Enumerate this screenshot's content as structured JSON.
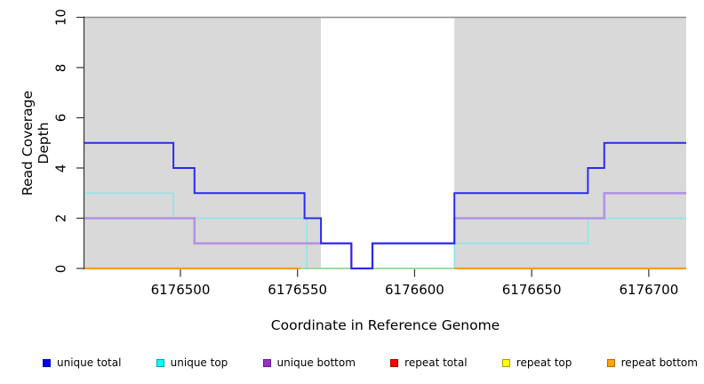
{
  "chart_data": {
    "type": "line",
    "subtype": "step-coverage-plot",
    "xlabel": "Coordinate in Reference Genome",
    "ylabel": "Read Coverage Depth",
    "xlim": [
      6176459,
      6176716
    ],
    "ylim": [
      0,
      10
    ],
    "x_ticks": [
      6176500,
      6176550,
      6176600,
      6176650,
      6176700
    ],
    "y_ticks": [
      0,
      2,
      4,
      6,
      8,
      10
    ],
    "grid": "off",
    "top_boundary": {
      "depth": 10,
      "color": "#8c8c8c"
    },
    "background_regions": [
      {
        "name": "masked-left",
        "from": 6176459,
        "to": 6176560,
        "color": "#d9d9d9"
      },
      {
        "name": "unmasked-gap",
        "from": 6176560,
        "to": 6176617,
        "color": "#ffffff"
      },
      {
        "name": "masked-right",
        "from": 6176617,
        "to": 6176716,
        "color": "#d9d9d9"
      }
    ],
    "series": [
      {
        "name": "unique total",
        "color": "#0000ff",
        "step_points": [
          [
            6176459,
            5
          ],
          [
            6176497,
            4
          ],
          [
            6176506,
            3
          ],
          [
            6176553,
            2
          ],
          [
            6176560,
            1
          ],
          [
            6176573,
            0
          ],
          [
            6176582,
            1
          ],
          [
            6176617,
            3
          ],
          [
            6176674,
            4
          ],
          [
            6176681,
            5
          ]
        ]
      },
      {
        "name": "unique top",
        "color": "#00ffff",
        "step_points": [
          [
            6176459,
            3
          ],
          [
            6176497,
            2
          ],
          [
            6176554,
            0
          ],
          [
            6176617,
            1
          ],
          [
            6176674,
            2
          ]
        ]
      },
      {
        "name": "unique bottom",
        "color": "#9932cc",
        "step_points": [
          [
            6176459,
            2
          ],
          [
            6176506,
            1
          ],
          [
            6176573,
            0
          ],
          [
            6176582,
            1
          ],
          [
            6176617,
            2
          ],
          [
            6176681,
            3
          ]
        ]
      },
      {
        "name": "repeat total",
        "color": "#ff0000",
        "step_points": [
          [
            6176459,
            0
          ]
        ]
      },
      {
        "name": "repeat top",
        "color": "#ffff00",
        "step_points": [
          [
            6176459,
            0
          ]
        ]
      },
      {
        "name": "repeat bottom",
        "color": "#ffa500",
        "step_points": [
          [
            6176459,
            0
          ]
        ]
      }
    ],
    "rendered_strokes": [
      {
        "name": "unique-top-line",
        "color": "#86e9e9",
        "width": 1.6,
        "vertices": [
          [
            6176459,
            3
          ],
          [
            6176497,
            3
          ],
          [
            6176497,
            2
          ],
          [
            6176554,
            2
          ],
          [
            6176554,
            0
          ],
          [
            6176617,
            0
          ],
          [
            6176617,
            1
          ],
          [
            6176674,
            1
          ],
          [
            6176674,
            2
          ],
          [
            6176716,
            2
          ]
        ]
      },
      {
        "name": "top-yellow-overlap-line",
        "color": "#96d796",
        "width": 1.8,
        "vertices": [
          [
            6176551,
            0
          ],
          [
            6176617,
            0
          ]
        ]
      },
      {
        "name": "repeat-bottom-line-left",
        "color": "#ff9d0d",
        "width": 2.2,
        "vertices": [
          [
            6176459,
            0
          ],
          [
            6176551,
            0
          ]
        ]
      },
      {
        "name": "repeat-bottom-line-right",
        "color": "#ff9d0d",
        "width": 2.2,
        "vertices": [
          [
            6176617,
            0
          ],
          [
            6176716,
            0
          ]
        ]
      },
      {
        "name": "unique-bottom-line",
        "color": "#b293e3",
        "width": 2.6,
        "vertices": [
          [
            6176459,
            2
          ],
          [
            6176506,
            2
          ],
          [
            6176506,
            1
          ],
          [
            6176573,
            1
          ],
          [
            6176573,
            0
          ],
          [
            6176582,
            0
          ],
          [
            6176582,
            1
          ],
          [
            6176617,
            1
          ],
          [
            6176617,
            2
          ],
          [
            6176681,
            2
          ],
          [
            6176681,
            3
          ],
          [
            6176716,
            3
          ]
        ]
      },
      {
        "name": "unique-total-line",
        "color": "#2b2bee",
        "width": 2.0,
        "vertices": [
          [
            6176459,
            5
          ],
          [
            6176497,
            5
          ],
          [
            6176497,
            4
          ],
          [
            6176506,
            4
          ],
          [
            6176506,
            3
          ],
          [
            6176553,
            3
          ],
          [
            6176553,
            2
          ],
          [
            6176560,
            2
          ],
          [
            6176560,
            1
          ],
          [
            6176573,
            1
          ],
          [
            6176573,
            0
          ],
          [
            6176582,
            0
          ],
          [
            6176582,
            1
          ],
          [
            6176617,
            1
          ],
          [
            6176617,
            3
          ],
          [
            6176674,
            3
          ],
          [
            6176674,
            4
          ],
          [
            6176681,
            4
          ],
          [
            6176681,
            5
          ],
          [
            6176716,
            5
          ]
        ]
      }
    ],
    "legend_position": "bottom",
    "axis_color": "#333333"
  },
  "legend": {
    "items": [
      {
        "label": "unique total",
        "fill": "#0000ff",
        "border": "#0000b3"
      },
      {
        "label": "unique top",
        "fill": "#00ffff",
        "border": "#00a3a3"
      },
      {
        "label": "unique bottom",
        "fill": "#9932cc",
        "border": "#641e8c"
      },
      {
        "label": "repeat total",
        "fill": "#ff0000",
        "border": "#a30000"
      },
      {
        "label": "repeat top",
        "fill": "#ffff00",
        "border": "#a3a300"
      },
      {
        "label": "repeat bottom",
        "fill": "#ffa500",
        "border": "#b36b00"
      }
    ]
  }
}
